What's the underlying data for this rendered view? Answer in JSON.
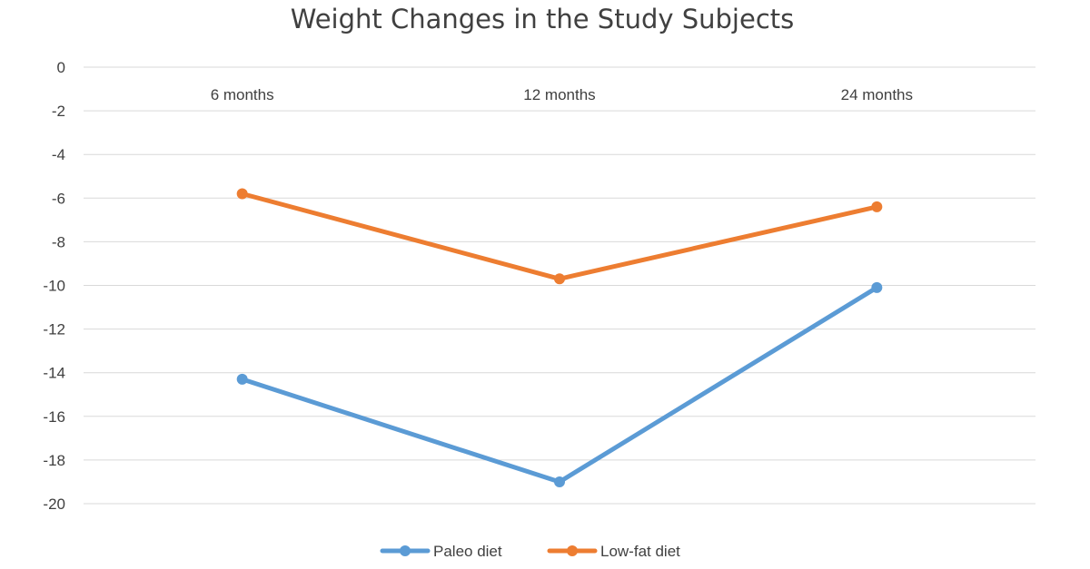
{
  "chart_data": {
    "type": "line",
    "title": "Weight Changes in the Study Subjects",
    "xlabel": "",
    "ylabel": "",
    "categories": [
      "6 months",
      "12 months",
      "24 months"
    ],
    "ylim": [
      -20,
      0
    ],
    "yticks": [
      0,
      -2,
      -4,
      -6,
      -8,
      -10,
      -12,
      -14,
      -16,
      -18,
      -20
    ],
    "grid": true,
    "legend_position": "bottom",
    "series": [
      {
        "name": "Paleo diet",
        "color": "#5b9bd5",
        "values": [
          -14.3,
          -19.0,
          -10.1
        ]
      },
      {
        "name": "Low-fat diet",
        "color": "#ed7d31",
        "values": [
          -5.8,
          -9.7,
          -6.4
        ]
      }
    ]
  }
}
